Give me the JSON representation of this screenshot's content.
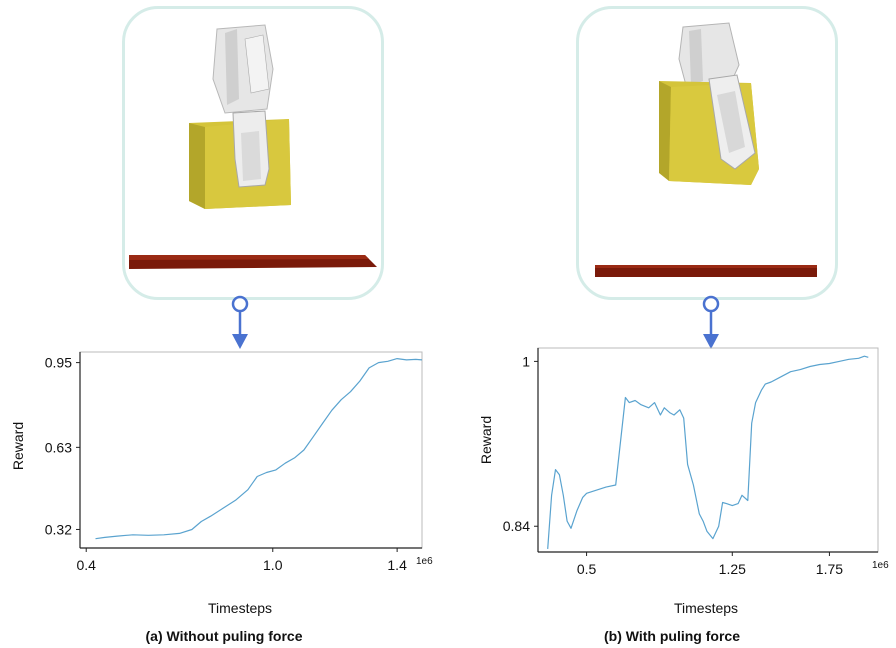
{
  "panels": [
    {
      "caption": "(a) Without puling force",
      "illustration": "gripper-holding-yellow-cube-off-center"
    },
    {
      "caption": "(b) With puling force",
      "illustration": "gripper-holding-yellow-cube-tilted"
    }
  ],
  "colors": {
    "line": "#5aa3cf",
    "frame": "#d5ece8",
    "connector": "#4a72d0",
    "cube": "#d4c43a",
    "table": "#7a1a0a",
    "axis": "#222222"
  },
  "chart_data": [
    {
      "type": "line",
      "title": "",
      "xlabel": "Timesteps",
      "ylabel": "Reward",
      "x_exponent_label": "1e6",
      "xlim": [
        0.38,
        1.48
      ],
      "ylim": [
        0.25,
        0.99
      ],
      "xticks": [
        0.4,
        1.0,
        1.4
      ],
      "xtick_labels": [
        "0.4",
        "1.0",
        "1.4"
      ],
      "yticks": [
        0.32,
        0.63,
        0.95
      ],
      "ytick_labels": [
        "0.32",
        "0.63",
        "0.95"
      ],
      "grid": false,
      "series": [
        {
          "x": [
            0.43,
            0.46,
            0.5,
            0.55,
            0.6,
            0.65,
            0.7,
            0.74,
            0.77,
            0.8,
            0.84,
            0.88,
            0.92,
            0.95,
            0.98,
            1.01,
            1.04,
            1.07,
            1.1,
            1.13,
            1.16,
            1.19,
            1.22,
            1.25,
            1.28,
            1.31,
            1.34,
            1.37,
            1.4,
            1.43,
            1.46,
            1.48
          ],
          "y": [
            0.285,
            0.29,
            0.295,
            0.3,
            0.298,
            0.3,
            0.305,
            0.32,
            0.35,
            0.37,
            0.4,
            0.43,
            0.47,
            0.52,
            0.535,
            0.545,
            0.57,
            0.59,
            0.62,
            0.67,
            0.72,
            0.77,
            0.81,
            0.84,
            0.88,
            0.93,
            0.95,
            0.955,
            0.965,
            0.96,
            0.962,
            0.96
          ]
        }
      ]
    },
    {
      "type": "line",
      "title": "",
      "xlabel": "Timesteps",
      "ylabel": "Reward",
      "x_exponent_label": "1e6",
      "xlim": [
        0.25,
        2.0
      ],
      "ylim": [
        0.815,
        1.013
      ],
      "xticks": [
        0.5,
        1.25,
        1.75
      ],
      "xtick_labels": [
        "0.5",
        "1.25",
        "1.75"
      ],
      "yticks": [
        0.84,
        1.0
      ],
      "ytick_labels": [
        "0.84",
        "1"
      ],
      "grid": false,
      "series": [
        {
          "x": [
            0.3,
            0.32,
            0.34,
            0.36,
            0.38,
            0.4,
            0.42,
            0.45,
            0.48,
            0.5,
            0.55,
            0.6,
            0.65,
            0.7,
            0.72,
            0.75,
            0.78,
            0.82,
            0.85,
            0.88,
            0.9,
            0.93,
            0.95,
            0.98,
            1.0,
            1.02,
            1.05,
            1.08,
            1.1,
            1.12,
            1.15,
            1.18,
            1.2,
            1.22,
            1.25,
            1.28,
            1.3,
            1.33,
            1.35,
            1.37,
            1.4,
            1.42,
            1.45,
            1.5,
            1.55,
            1.6,
            1.65,
            1.7,
            1.75,
            1.8,
            1.85,
            1.9,
            1.93,
            1.95
          ],
          "y": [
            0.818,
            0.87,
            0.895,
            0.89,
            0.87,
            0.845,
            0.838,
            0.855,
            0.868,
            0.872,
            0.875,
            0.878,
            0.88,
            0.965,
            0.96,
            0.962,
            0.958,
            0.955,
            0.96,
            0.948,
            0.955,
            0.95,
            0.948,
            0.953,
            0.945,
            0.9,
            0.88,
            0.852,
            0.845,
            0.835,
            0.828,
            0.84,
            0.863,
            0.862,
            0.86,
            0.862,
            0.87,
            0.865,
            0.94,
            0.96,
            0.972,
            0.978,
            0.98,
            0.985,
            0.99,
            0.992,
            0.995,
            0.997,
            0.998,
            1.0,
            1.002,
            1.003,
            1.005,
            1.004
          ]
        }
      ]
    }
  ]
}
